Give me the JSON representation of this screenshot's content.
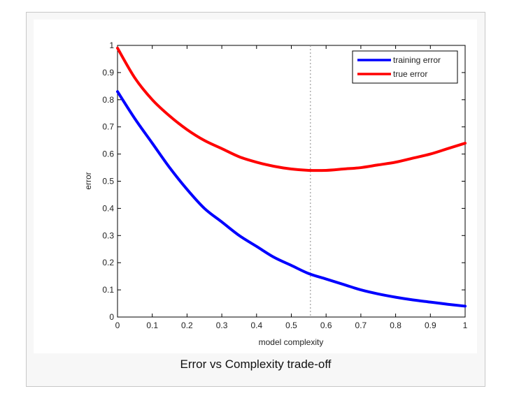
{
  "figure": {
    "caption": "Error vs Complexity trade-off"
  },
  "chart_data": {
    "type": "line",
    "xlabel": "model complexity",
    "ylabel": "error",
    "xlim": [
      0,
      1
    ],
    "ylim": [
      0,
      1
    ],
    "xticks": [
      "0",
      "0.1",
      "0.2",
      "0.3",
      "0.4",
      "0.5",
      "0.6",
      "0.7",
      "0.8",
      "0.9",
      "1"
    ],
    "yticks": [
      "0",
      "0.1",
      "0.2",
      "0.3",
      "0.4",
      "0.5",
      "0.6",
      "0.7",
      "0.8",
      "0.9",
      "1"
    ],
    "grid": false,
    "legend_position": "top-right",
    "vertical_line": {
      "x": 0.555,
      "style": "dotted",
      "color": "#888888"
    },
    "series": [
      {
        "name": "training error",
        "color": "#0000ff",
        "x": [
          0,
          0.05,
          0.1,
          0.15,
          0.2,
          0.25,
          0.3,
          0.35,
          0.4,
          0.45,
          0.5,
          0.55,
          0.6,
          0.65,
          0.7,
          0.75,
          0.8,
          0.85,
          0.9,
          0.95,
          1
        ],
        "y": [
          0.83,
          0.73,
          0.64,
          0.55,
          0.47,
          0.4,
          0.35,
          0.3,
          0.26,
          0.22,
          0.19,
          0.16,
          0.14,
          0.12,
          0.1,
          0.085,
          0.073,
          0.063,
          0.055,
          0.047,
          0.04
        ]
      },
      {
        "name": "true error",
        "color": "#ff0000",
        "x": [
          0,
          0.05,
          0.1,
          0.15,
          0.2,
          0.25,
          0.3,
          0.35,
          0.4,
          0.45,
          0.5,
          0.55,
          0.6,
          0.65,
          0.7,
          0.75,
          0.8,
          0.85,
          0.9,
          0.95,
          1
        ],
        "y": [
          0.99,
          0.88,
          0.8,
          0.74,
          0.69,
          0.65,
          0.62,
          0.59,
          0.57,
          0.555,
          0.545,
          0.54,
          0.54,
          0.545,
          0.55,
          0.56,
          0.57,
          0.585,
          0.6,
          0.62,
          0.64
        ]
      }
    ]
  }
}
